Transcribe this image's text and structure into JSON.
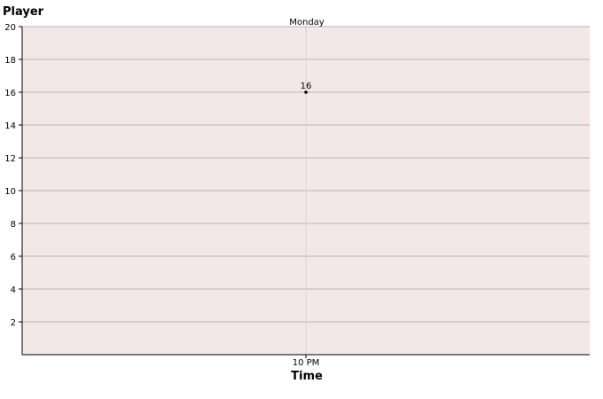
{
  "chart_data": {
    "type": "line",
    "title": "",
    "ylabel": "Player",
    "xlabel": "Time",
    "x_top_label": "Monday",
    "categories": [
      "10 PM"
    ],
    "series": [
      {
        "values": [
          16
        ]
      }
    ],
    "data_labels": [
      "16"
    ],
    "ylim": [
      0,
      20
    ],
    "yticks": [
      2,
      4,
      6,
      8,
      10,
      12,
      14,
      16,
      18,
      20
    ],
    "ytick_labels": [
      "2",
      "4",
      "6",
      "8",
      "10",
      "12",
      "14",
      "16",
      "18",
      "20"
    ],
    "grid": true,
    "legend": "none",
    "colors": {
      "plot_background": "#f3e8e8",
      "grid": "#b9b2b2",
      "marker": "#000000",
      "axis": "#000000",
      "vertical_guide": "#dcd3d3"
    }
  }
}
